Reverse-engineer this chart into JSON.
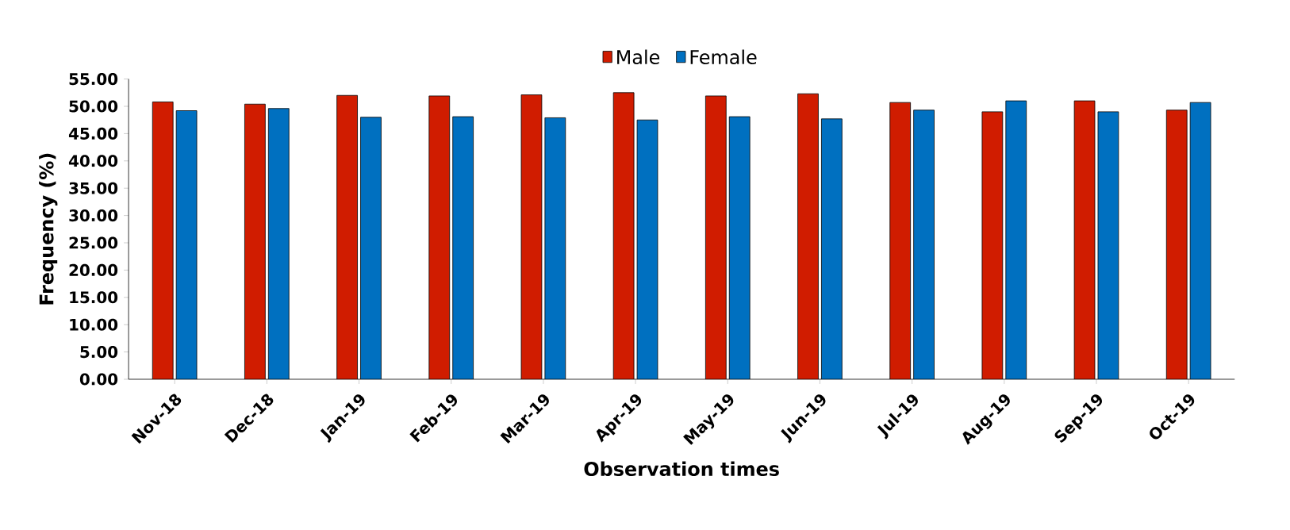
{
  "chart_data": {
    "type": "bar",
    "xlabel": "Observation times",
    "ylabel": "Frequency (%)",
    "categories": [
      "Nov-18",
      "Dec-18",
      "Jan-19",
      "Feb-19",
      "Mar-19",
      "Apr-19",
      "May-19",
      "Jun-19",
      "Jul-19",
      "Aug-19",
      "Sep-19",
      "Oct-19"
    ],
    "series": [
      {
        "name": "Male",
        "color": "#d01c00",
        "values": [
          50.8,
          50.4,
          52.0,
          51.9,
          52.1,
          52.5,
          51.9,
          52.3,
          50.7,
          49.0,
          51.0,
          49.3
        ]
      },
      {
        "name": "Female",
        "color": "#0070c0",
        "values": [
          49.2,
          49.6,
          48.0,
          48.1,
          47.9,
          47.5,
          48.1,
          47.7,
          49.3,
          51.0,
          49.0,
          50.7
        ]
      }
    ],
    "ylim": [
      0,
      55
    ],
    "yticks": [
      {
        "value": 0,
        "label": "0.00"
      },
      {
        "value": 5,
        "label": "5.00"
      },
      {
        "value": 10,
        "label": "10.00"
      },
      {
        "value": 15,
        "label": "15.00"
      },
      {
        "value": 20,
        "label": "20.00"
      },
      {
        "value": 25,
        "label": "25.00"
      },
      {
        "value": 30,
        "label": "30.00"
      },
      {
        "value": 35,
        "label": "35.00"
      },
      {
        "value": 40,
        "label": "40.00"
      },
      {
        "value": 45,
        "label": "45.00"
      },
      {
        "value": 50,
        "label": "50.00"
      },
      {
        "value": 55,
        "label": "55.00"
      }
    ],
    "grid": false,
    "legend": "top"
  }
}
